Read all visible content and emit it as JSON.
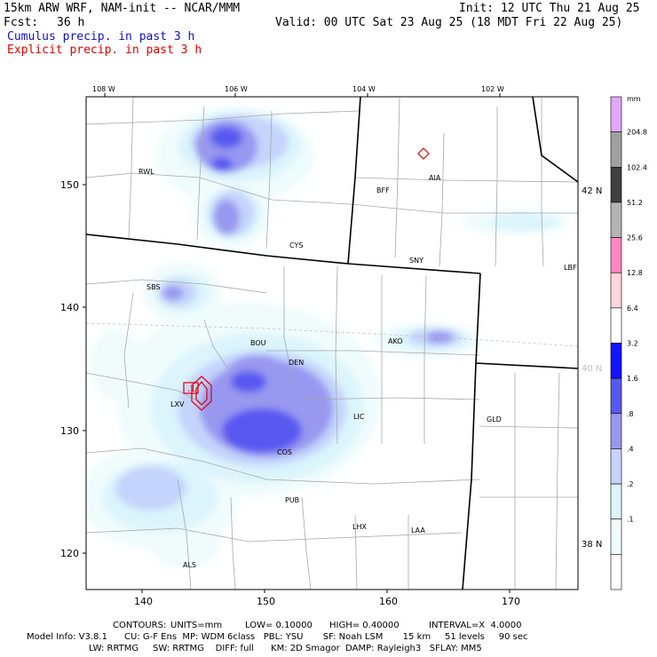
{
  "header": {
    "model": "15km ARW WRF, NAM-init -- NCAR/MMM",
    "init": "Init: 12 UTC Thu 21 Aug 25",
    "fcst_label": "Fcst:",
    "fcst_value": "36 h",
    "valid": "Valid: 00 UTC Sat 23 Aug 25 (18 MDT Fri 22 Aug 25)",
    "legend_cumulus": "Cumulus precip. in past 3 h",
    "legend_explicit": "Explicit precip. in past 3 h"
  },
  "axes": {
    "top_lon": [
      "108 W",
      "106 W",
      "104 W",
      "102 W"
    ],
    "right_lat": [
      "42 N",
      "40 N",
      "38 N"
    ],
    "left_y": [
      "150",
      "140",
      "130",
      "120"
    ],
    "bottom_x": [
      "140",
      "150",
      "160",
      "170"
    ]
  },
  "stations": [
    "RWL",
    "BFF",
    "AIA",
    "CYS",
    "SNY",
    "LBF",
    "SBS",
    "BOU",
    "DEN",
    "AKO",
    "LXV",
    "LIC",
    "GLD",
    "COS",
    "PUB",
    "LHX",
    "LAA",
    "ALS"
  ],
  "colorbar": {
    "unit": "mm",
    "levels": [
      "204.8",
      "102.4",
      "51.2",
      "25.6",
      "12.8",
      "6.4",
      "3.2",
      "1.6",
      ".8",
      ".4",
      ".2",
      ".1"
    ],
    "colors": [
      "#e0a8f8",
      "#a0a0a0",
      "#404040",
      "#b4b4b4",
      "#ff88c0",
      "#ffd4dc",
      "#ffffff",
      "#1414ff",
      "#5858f0",
      "#9898f0",
      "#c4d4fc",
      "#dcf4fc",
      "#f0fcfc",
      "#ffffff"
    ]
  },
  "contours_line": {
    "label": "CONTOURS:",
    "units": "UNITS=mm",
    "low": "LOW= 0.10000",
    "high": "HIGH= 0.40000",
    "interval": "INTERVAL=X  4.0000"
  },
  "model_info": [
    "Model Info: V3.8.1      CU: G-F Ens  MP: WDM 6class   PBL: YSU       SF: Noah LSM       15 km     51 levels     90 sec",
    "LW: RRTMG     SW: RRTMG    DIFF: full      KM: 2D Smagor  DAMP: Rayleigh3   SFLAY: MM5"
  ]
}
